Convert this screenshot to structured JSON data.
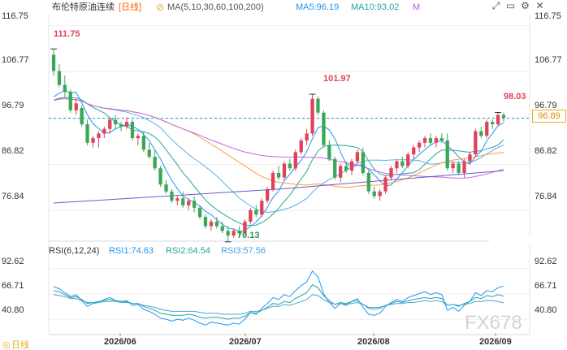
{
  "header": {
    "title": "布伦特原油连续",
    "period": "[日线]",
    "ma_params": "MA(5,10,30,60,100,200)",
    "ma5": "MA5:96.19",
    "ma10": "MA10:93.02",
    "m_label": "M",
    "rsi_params": "RSI(6,12,24)",
    "rsi1": "RSI1:74.63",
    "rsi2": "RSI2:64.54",
    "rsi3": "RSI3:57.56",
    "colors": {
      "title": "#333333",
      "period": "#ff6600",
      "ma5": "#2196f3",
      "ma10": "#26a69a",
      "rsi1": "#2196f3",
      "rsi2": "#26a69a",
      "rsi3": "#4aa3df"
    }
  },
  "toolbar": [
    "expand-icon",
    "minimize-icon",
    "settings-icon",
    "close-icon"
  ],
  "y_axis_main": [
    "116.75",
    "106.77",
    "96.79",
    "86.82",
    "76.84"
  ],
  "y_axis_rsi": [
    "92.62",
    "66.71",
    "40.80"
  ],
  "x_axis": [
    "2026/06",
    "2026/07",
    "2026/08",
    "2026/09"
  ],
  "current_price_tag": "96.89",
  "annotations": {
    "high1": "111.75",
    "high2": "101.97",
    "last": "98.03",
    "low": "70.13"
  },
  "watermark": "FX678",
  "bottom_logo_text": "日线",
  "chart_data": {
    "type": "candlestick",
    "title": "布伦特原油连续 [日线]",
    "ylim": [
      71.5,
      118.8
    ],
    "rsi_ylim": [
      27,
      103
    ],
    "reference_line": 96.79,
    "candles": [
      [
        110.5,
        111.75,
        106.0,
        107.0
      ],
      [
        107.0,
        108.5,
        103.5,
        104.0
      ],
      [
        104.0,
        106.0,
        101.5,
        102.5
      ],
      [
        102.5,
        103.0,
        98.0,
        98.5
      ],
      [
        98.5,
        101.0,
        97.5,
        100.0
      ],
      [
        99.0,
        99.5,
        95.0,
        95.5
      ],
      [
        95.5,
        96.5,
        91.0,
        91.5
      ],
      [
        91.5,
        93.0,
        90.5,
        92.5
      ],
      [
        92.5,
        94.0,
        90.5,
        93.5
      ],
      [
        93.5,
        95.0,
        92.5,
        94.5
      ],
      [
        94.5,
        97.0,
        93.5,
        96.5
      ],
      [
        96.5,
        97.5,
        94.5,
        95.5
      ],
      [
        95.5,
        96.0,
        94.0,
        95.0
      ],
      [
        95.0,
        97.0,
        94.5,
        96.0
      ],
      [
        96.0,
        96.5,
        92.0,
        92.5
      ],
      [
        92.5,
        93.5,
        91.0,
        93.0
      ],
      [
        93.0,
        94.0,
        89.5,
        90.0
      ],
      [
        90.0,
        91.5,
        88.0,
        88.5
      ],
      [
        88.5,
        90.0,
        85.5,
        86.0
      ],
      [
        86.0,
        86.5,
        82.0,
        82.5
      ],
      [
        82.5,
        83.5,
        80.5,
        81.0
      ],
      [
        81.0,
        81.5,
        78.5,
        79.0
      ],
      [
        79.0,
        80.0,
        78.0,
        79.5
      ],
      [
        79.5,
        81.0,
        77.5,
        78.0
      ],
      [
        78.0,
        79.5,
        77.0,
        79.0
      ],
      [
        79.0,
        80.0,
        76.5,
        77.5
      ],
      [
        77.5,
        78.0,
        75.0,
        75.5
      ],
      [
        75.5,
        76.0,
        73.0,
        73.5
      ],
      [
        73.5,
        75.0,
        72.5,
        74.5
      ],
      [
        74.5,
        75.5,
        73.0,
        73.5
      ],
      [
        73.5,
        74.5,
        72.0,
        72.5
      ],
      [
        72.5,
        73.5,
        70.13,
        71.5
      ],
      [
        71.5,
        73.0,
        71.0,
        72.5
      ],
      [
        72.5,
        73.5,
        71.5,
        72.0
      ],
      [
        72.0,
        75.0,
        71.5,
        74.5
      ],
      [
        74.5,
        77.5,
        74.0,
        77.0
      ],
      [
        77.0,
        78.0,
        75.5,
        76.0
      ],
      [
        76.0,
        79.5,
        75.5,
        79.0
      ],
      [
        79.0,
        82.0,
        78.5,
        81.5
      ],
      [
        81.5,
        85.5,
        81.0,
        85.0
      ],
      [
        85.0,
        86.5,
        83.5,
        84.0
      ],
      [
        84.0,
        87.5,
        83.5,
        87.0
      ],
      [
        87.0,
        88.0,
        85.5,
        86.0
      ],
      [
        86.0,
        90.0,
        85.5,
        89.5
      ],
      [
        89.5,
        92.5,
        89.0,
        92.0
      ],
      [
        92.0,
        94.5,
        91.0,
        93.5
      ],
      [
        93.5,
        101.97,
        93.0,
        101.0
      ],
      [
        101.0,
        101.5,
        97.5,
        98.0
      ],
      [
        98.0,
        98.5,
        90.5,
        91.0
      ],
      [
        91.0,
        92.0,
        87.5,
        88.0
      ],
      [
        88.0,
        88.5,
        83.5,
        84.0
      ],
      [
        84.0,
        87.0,
        83.0,
        86.5
      ],
      [
        86.5,
        87.5,
        85.0,
        85.5
      ],
      [
        85.5,
        88.0,
        84.5,
        87.5
      ],
      [
        87.5,
        90.0,
        87.0,
        89.5
      ],
      [
        89.5,
        90.5,
        84.5,
        85.0
      ],
      [
        85.0,
        85.5,
        80.5,
        81.0
      ],
      [
        81.0,
        82.0,
        79.5,
        80.0
      ],
      [
        80.0,
        81.5,
        79.0,
        81.0
      ],
      [
        81.0,
        84.5,
        80.5,
        84.0
      ],
      [
        84.0,
        86.5,
        83.5,
        86.0
      ],
      [
        86.0,
        88.0,
        85.0,
        87.5
      ],
      [
        87.5,
        88.5,
        86.0,
        86.5
      ],
      [
        86.5,
        89.5,
        86.0,
        89.0
      ],
      [
        89.0,
        91.0,
        88.0,
        90.5
      ],
      [
        90.5,
        92.0,
        89.5,
        91.5
      ],
      [
        91.5,
        93.0,
        90.5,
        92.5
      ],
      [
        92.5,
        93.5,
        91.0,
        91.5
      ],
      [
        91.5,
        93.0,
        90.5,
        92.5
      ],
      [
        92.5,
        93.5,
        91.5,
        92.0
      ],
      [
        92.0,
        93.5,
        85.5,
        86.0
      ],
      [
        86.0,
        87.5,
        85.0,
        87.0
      ],
      [
        87.0,
        87.5,
        84.5,
        85.0
      ],
      [
        85.0,
        88.0,
        84.0,
        87.5
      ],
      [
        87.5,
        89.5,
        87.0,
        89.0
      ],
      [
        89.0,
        94.5,
        88.5,
        94.0
      ],
      [
        94.0,
        95.0,
        92.5,
        93.0
      ],
      [
        93.0,
        96.5,
        92.5,
        96.0
      ],
      [
        96.0,
        96.5,
        94.5,
        95.5
      ],
      [
        95.5,
        98.03,
        95.0,
        97.5
      ],
      [
        97.5,
        98.03,
        96.0,
        96.9
      ]
    ],
    "rsi1": [
      74,
      72,
      68,
      64,
      66,
      60,
      54,
      57,
      58,
      61,
      63,
      60,
      59,
      60,
      55,
      56,
      51,
      49,
      46,
      42,
      41,
      39,
      41,
      40,
      42,
      40,
      37,
      35,
      38,
      37,
      36,
      35,
      37,
      36,
      41,
      48,
      46,
      52,
      57,
      63,
      61,
      66,
      64,
      70,
      75,
      79,
      90,
      84,
      67,
      58,
      52,
      57,
      55,
      59,
      62,
      53,
      46,
      45,
      47,
      54,
      58,
      61,
      59,
      63,
      65,
      67,
      69,
      66,
      68,
      66,
      50,
      53,
      49,
      55,
      59,
      68,
      65,
      70,
      69,
      73,
      74.63
    ],
    "rsi2": [
      70,
      69,
      66,
      63,
      64,
      61,
      57,
      58,
      59,
      60,
      61,
      60,
      59,
      59,
      57,
      57,
      54,
      52,
      50,
      47,
      46,
      45,
      45,
      45,
      46,
      45,
      43,
      42,
      43,
      43,
      42,
      41,
      42,
      42,
      44,
      48,
      47,
      50,
      53,
      57,
      56,
      59,
      58,
      62,
      65,
      68,
      76,
      73,
      65,
      60,
      56,
      58,
      57,
      59,
      60,
      56,
      52,
      51,
      52,
      55,
      57,
      59,
      58,
      60,
      61,
      62,
      63,
      62,
      63,
      62,
      55,
      56,
      54,
      57,
      59,
      63,
      62,
      65,
      64,
      66,
      64.54
    ],
    "rsi3": [
      66,
      65,
      64,
      62,
      62,
      60,
      58,
      58,
      58,
      59,
      59,
      59,
      58,
      58,
      57,
      57,
      55,
      54,
      53,
      51,
      50,
      49,
      49,
      49,
      49,
      49,
      48,
      47,
      47,
      47,
      46,
      46,
      46,
      46,
      47,
      49,
      49,
      50,
      52,
      54,
      54,
      56,
      55,
      57,
      59,
      61,
      66,
      65,
      61,
      58,
      56,
      57,
      56,
      57,
      58,
      56,
      53,
      53,
      53,
      55,
      56,
      57,
      57,
      58,
      58,
      59,
      60,
      59,
      60,
      59,
      55,
      56,
      55,
      56,
      57,
      59,
      59,
      60,
      60,
      59,
      57.56
    ]
  }
}
